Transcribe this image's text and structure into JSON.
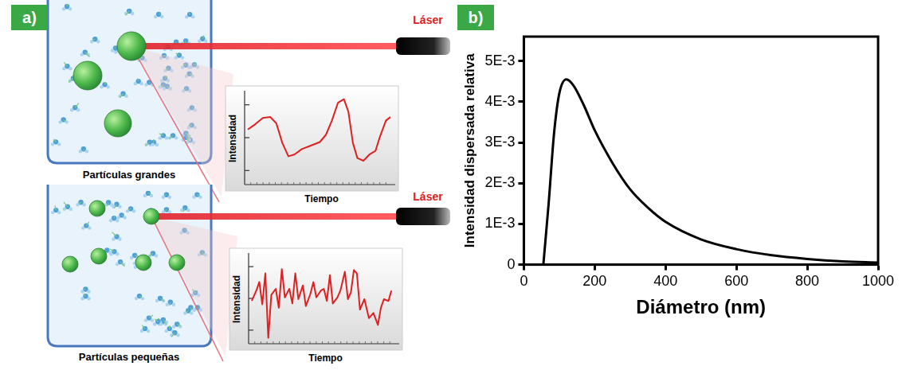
{
  "figure": {
    "panel_labels": [
      "a)",
      "b)"
    ]
  },
  "diagram": {
    "panels": [
      {
        "caption": "Partículas grandes",
        "laser": "Láser",
        "y_axis": "Intensidad",
        "x_axis": "Tiempo"
      },
      {
        "caption": "Partículas pequeñas",
        "laser": "Láser",
        "y_axis": "Intensidad",
        "x_axis": "Tiempo"
      }
    ]
  },
  "chart_data": {
    "type": "line",
    "x_label": "Diámetro (nm)",
    "y_label": "Intensidad dispersada relativa",
    "x": [
      55,
      70,
      85,
      100,
      120,
      140,
      170,
      200,
      250,
      300,
      350,
      400,
      500,
      600,
      700,
      800,
      900,
      1000
    ],
    "values": [
      0,
      0.0015,
      0.0032,
      0.0042,
      0.00455,
      0.0044,
      0.0039,
      0.0033,
      0.0025,
      0.00185,
      0.0014,
      0.00105,
      0.00062,
      0.00038,
      0.00023,
      0.00014,
      8e-05,
      5e-05
    ],
    "color": "#000000",
    "line_style": "solid",
    "marker": "none",
    "xlim": [
      0,
      1000
    ],
    "xticks": [
      0,
      200,
      400,
      600,
      800,
      1000
    ],
    "ylim": [
      0,
      0.0056
    ],
    "yticks": [
      0,
      {
        "value": 0.001,
        "label": "1E-3"
      },
      {
        "value": 0.002,
        "label": "2E-3"
      },
      {
        "value": 0.003,
        "label": "3E-3"
      },
      {
        "value": 0.004,
        "label": "4E-3"
      },
      {
        "value": 0.005,
        "label": "5E-3"
      }
    ],
    "grid": false
  }
}
